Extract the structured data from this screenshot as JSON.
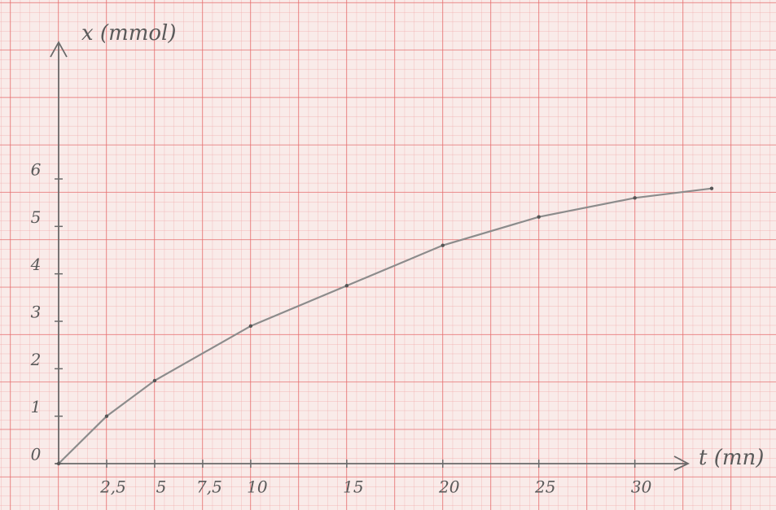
{
  "chart_data": {
    "type": "line",
    "x_label": "t (mn)",
    "y_label": "x (mmol)",
    "x": [
      0,
      2.5,
      5,
      10,
      15,
      20,
      25,
      30,
      34
    ],
    "values": [
      0,
      1,
      1.75,
      2.9,
      3.75,
      4.6,
      5.2,
      5.6,
      5.8
    ],
    "color": "#8c8c8c",
    "xlim": [
      0,
      34
    ],
    "ylim": [
      0,
      9
    ],
    "xticks": [
      {
        "value": 2.5,
        "label": "2,5"
      },
      5,
      {
        "value": 7.5,
        "label": "7,5"
      },
      10,
      15,
      20,
      25,
      30
    ],
    "yticks": [
      0,
      1,
      2,
      3,
      4,
      5,
      6
    ]
  }
}
